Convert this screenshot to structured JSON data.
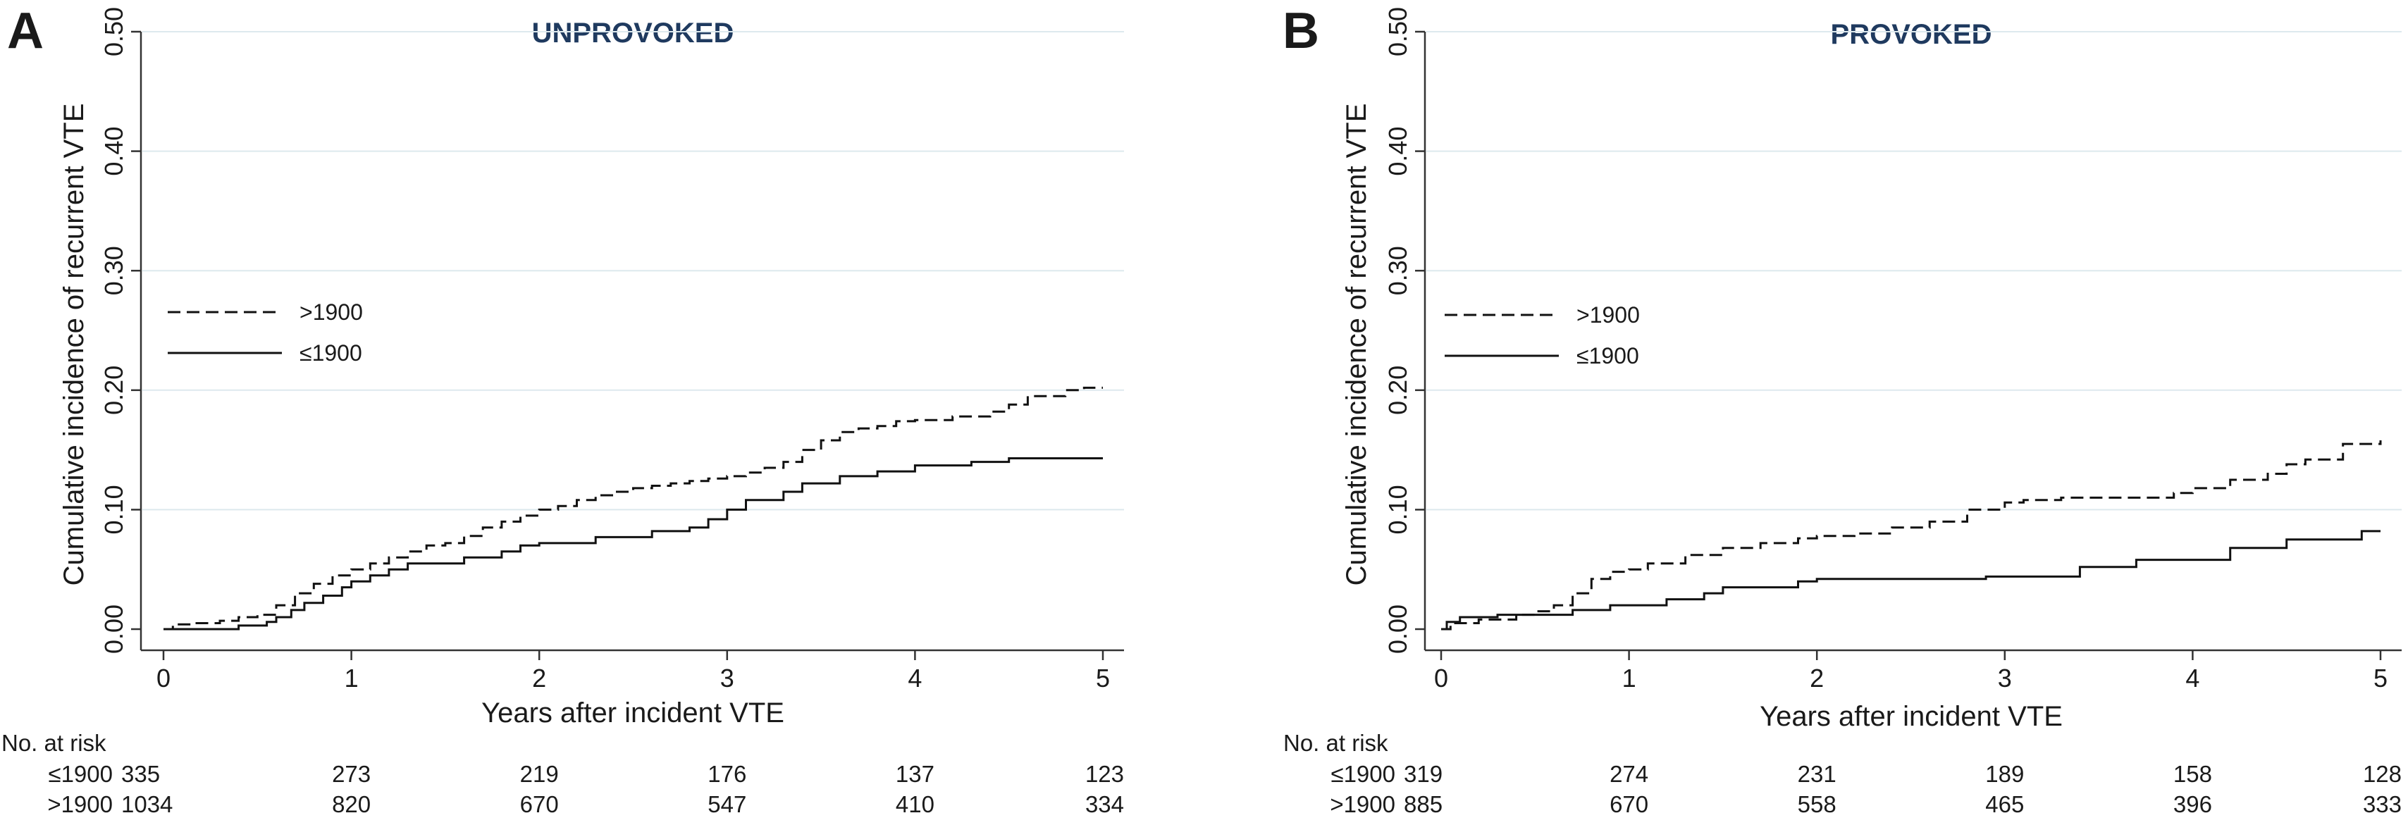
{
  "chart_data": [
    {
      "type": "line",
      "panel_label": "A",
      "title": "UNPROVOKED",
      "xlabel": "Years after incident VTE",
      "ylabel": "Cumulative incidence of recurrent VTE",
      "xlim": [
        0,
        5
      ],
      "ylim": [
        0,
        0.5
      ],
      "x_ticks": [
        "0",
        "1",
        "2",
        "3",
        "4",
        "5"
      ],
      "y_ticks": [
        "0.00",
        "0.10",
        "0.20",
        "0.30",
        "0.40",
        "0.50"
      ],
      "grid": true,
      "legend_position": "left",
      "series": [
        {
          "name": ">1900",
          "style": "dashed",
          "points": [
            [
              0,
              0
            ],
            [
              0.05,
              0.004
            ],
            [
              0.15,
              0.005
            ],
            [
              0.3,
              0.007
            ],
            [
              0.4,
              0.01
            ],
            [
              0.5,
              0.012
            ],
            [
              0.6,
              0.02
            ],
            [
              0.7,
              0.03
            ],
            [
              0.8,
              0.038
            ],
            [
              0.9,
              0.045
            ],
            [
              1.0,
              0.05
            ],
            [
              1.1,
              0.055
            ],
            [
              1.2,
              0.06
            ],
            [
              1.3,
              0.065
            ],
            [
              1.4,
              0.07
            ],
            [
              1.5,
              0.072
            ],
            [
              1.6,
              0.078
            ],
            [
              1.7,
              0.085
            ],
            [
              1.8,
              0.09
            ],
            [
              1.9,
              0.095
            ],
            [
              2.0,
              0.1
            ],
            [
              2.1,
              0.103
            ],
            [
              2.2,
              0.108
            ],
            [
              2.3,
              0.112
            ],
            [
              2.4,
              0.115
            ],
            [
              2.5,
              0.118
            ],
            [
              2.6,
              0.12
            ],
            [
              2.7,
              0.122
            ],
            [
              2.8,
              0.124
            ],
            [
              2.9,
              0.126
            ],
            [
              3.0,
              0.128
            ],
            [
              3.1,
              0.131
            ],
            [
              3.2,
              0.135
            ],
            [
              3.3,
              0.14
            ],
            [
              3.4,
              0.15
            ],
            [
              3.5,
              0.158
            ],
            [
              3.6,
              0.165
            ],
            [
              3.7,
              0.168
            ],
            [
              3.8,
              0.17
            ],
            [
              3.9,
              0.174
            ],
            [
              4.0,
              0.175
            ],
            [
              4.2,
              0.178
            ],
            [
              4.4,
              0.182
            ],
            [
              4.5,
              0.188
            ],
            [
              4.6,
              0.195
            ],
            [
              4.8,
              0.2
            ],
            [
              4.9,
              0.202
            ],
            [
              5.0,
              0.202
            ]
          ]
        },
        {
          "name": "≤1900",
          "style": "solid",
          "points": [
            [
              0,
              0
            ],
            [
              0.4,
              0.003
            ],
            [
              0.55,
              0.006
            ],
            [
              0.6,
              0.01
            ],
            [
              0.68,
              0.016
            ],
            [
              0.75,
              0.022
            ],
            [
              0.85,
              0.028
            ],
            [
              0.95,
              0.035
            ],
            [
              1.0,
              0.04
            ],
            [
              1.1,
              0.045
            ],
            [
              1.2,
              0.05
            ],
            [
              1.3,
              0.055
            ],
            [
              1.6,
              0.06
            ],
            [
              1.8,
              0.065
            ],
            [
              1.9,
              0.07
            ],
            [
              2.0,
              0.072
            ],
            [
              2.3,
              0.077
            ],
            [
              2.6,
              0.082
            ],
            [
              2.8,
              0.085
            ],
            [
              2.9,
              0.092
            ],
            [
              3.0,
              0.1
            ],
            [
              3.1,
              0.108
            ],
            [
              3.3,
              0.115
            ],
            [
              3.4,
              0.122
            ],
            [
              3.6,
              0.128
            ],
            [
              3.8,
              0.132
            ],
            [
              4.0,
              0.137
            ],
            [
              4.3,
              0.14
            ],
            [
              4.5,
              0.143
            ],
            [
              5.0,
              0.143
            ]
          ]
        }
      ],
      "risk_table": {
        "heading": "No. at risk",
        "time_points": [
          "0",
          "1",
          "2",
          "3",
          "4",
          "5"
        ],
        "rows": [
          {
            "label": "≤1900",
            "values": [
              "335",
              "273",
              "219",
              "176",
              "137",
              "123"
            ]
          },
          {
            "label": ">1900",
            "values": [
              "1034",
              "820",
              "670",
              "547",
              "410",
              "334"
            ]
          }
        ]
      }
    },
    {
      "type": "line",
      "panel_label": "B",
      "title": "PROVOKED",
      "xlabel": "Years after incident VTE",
      "ylabel": "Cumulative incidence of recurrent VTE",
      "xlim": [
        0,
        5
      ],
      "ylim": [
        0,
        0.5
      ],
      "x_ticks": [
        "0",
        "1",
        "2",
        "3",
        "4",
        "5"
      ],
      "y_ticks": [
        "0.00",
        "0.10",
        "0.20",
        "0.30",
        "0.40",
        "0.50"
      ],
      "grid": true,
      "legend_position": "left",
      "series": [
        {
          "name": ">1900",
          "style": "dashed",
          "points": [
            [
              0,
              0
            ],
            [
              0.05,
              0.005
            ],
            [
              0.2,
              0.008
            ],
            [
              0.4,
              0.012
            ],
            [
              0.5,
              0.015
            ],
            [
              0.6,
              0.02
            ],
            [
              0.7,
              0.03
            ],
            [
              0.8,
              0.042
            ],
            [
              0.9,
              0.048
            ],
            [
              1.0,
              0.05
            ],
            [
              1.1,
              0.055
            ],
            [
              1.3,
              0.062
            ],
            [
              1.5,
              0.068
            ],
            [
              1.7,
              0.072
            ],
            [
              1.9,
              0.076
            ],
            [
              2.0,
              0.078
            ],
            [
              2.2,
              0.08
            ],
            [
              2.4,
              0.085
            ],
            [
              2.6,
              0.09
            ],
            [
              2.8,
              0.1
            ],
            [
              3.0,
              0.106
            ],
            [
              3.1,
              0.108
            ],
            [
              3.3,
              0.11
            ],
            [
              3.6,
              0.11
            ],
            [
              3.9,
              0.114
            ],
            [
              4.0,
              0.118
            ],
            [
              4.2,
              0.125
            ],
            [
              4.4,
              0.13
            ],
            [
              4.5,
              0.138
            ],
            [
              4.6,
              0.142
            ],
            [
              4.8,
              0.155
            ],
            [
              5.0,
              0.158
            ]
          ]
        },
        {
          "name": "≤1900",
          "style": "solid",
          "points": [
            [
              0,
              0
            ],
            [
              0.03,
              0.006
            ],
            [
              0.1,
              0.01
            ],
            [
              0.3,
              0.012
            ],
            [
              0.7,
              0.016
            ],
            [
              0.9,
              0.02
            ],
            [
              1.2,
              0.025
            ],
            [
              1.4,
              0.03
            ],
            [
              1.5,
              0.035
            ],
            [
              1.9,
              0.04
            ],
            [
              2.0,
              0.042
            ],
            [
              2.9,
              0.044
            ],
            [
              3.4,
              0.052
            ],
            [
              3.7,
              0.058
            ],
            [
              4.2,
              0.068
            ],
            [
              4.5,
              0.075
            ],
            [
              4.9,
              0.082
            ],
            [
              5.0,
              0.082
            ]
          ]
        }
      ],
      "risk_table": {
        "heading": "No. at risk",
        "time_points": [
          "0",
          "1",
          "2",
          "3",
          "4",
          "5"
        ],
        "rows": [
          {
            "label": "≤1900",
            "values": [
              "319",
              "274",
              "231",
              "189",
              "158",
              "128"
            ]
          },
          {
            "label": ">1900",
            "values": [
              "885",
              "670",
              "558",
              "465",
              "396",
              "333"
            ]
          }
        ]
      }
    }
  ]
}
